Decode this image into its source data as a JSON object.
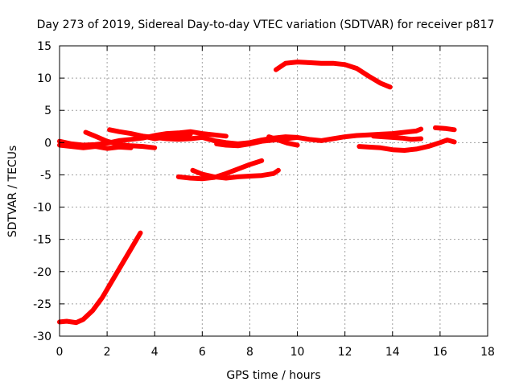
{
  "chart_data": {
    "type": "scatter",
    "title": "Day 273 of 2019, Sidereal Day-to-day VTEC variation (SDTVAR) for receiver p817",
    "xlabel": "GPS time / hours",
    "ylabel": "SDTVAR / TECUs",
    "xlim": [
      0,
      18
    ],
    "ylim": [
      -30,
      15
    ],
    "xticks": [
      0,
      2,
      4,
      6,
      8,
      10,
      12,
      14,
      16,
      18
    ],
    "yticks": [
      -30,
      -25,
      -20,
      -15,
      -10,
      -5,
      0,
      5,
      10,
      15
    ],
    "grid": true,
    "color": "#ff0000",
    "series": [
      {
        "name": "s1",
        "x": [
          0.0,
          0.3,
          0.7,
          1.0,
          1.4,
          1.8,
          2.2,
          2.6,
          3.0,
          3.4
        ],
        "y": [
          -27.8,
          -27.7,
          -27.9,
          -27.4,
          -26.0,
          -24.0,
          -21.5,
          -19.0,
          -16.5,
          -14.0
        ]
      },
      {
        "name": "s2",
        "x": [
          0.0,
          0.5,
          1.0,
          1.5,
          2.0,
          2.5,
          3.0,
          3.5,
          4.0,
          4.5,
          5.0,
          5.5,
          6.0,
          6.5,
          7.0
        ],
        "y": [
          0.2,
          -0.2,
          -0.4,
          -0.3,
          -0.1,
          0.3,
          0.5,
          0.7,
          1.1,
          1.4,
          1.5,
          1.7,
          1.4,
          1.2,
          1.0
        ]
      },
      {
        "name": "s3",
        "x": [
          0.0,
          0.5,
          1.0,
          1.5,
          2.0,
          2.5,
          3.0
        ],
        "y": [
          -0.4,
          -0.6,
          -0.8,
          -0.6,
          -0.9,
          -0.7,
          -0.8
        ]
      },
      {
        "name": "s4",
        "x": [
          1.1,
          1.5,
          2.0,
          2.5,
          3.0,
          3.5,
          4.0
        ],
        "y": [
          1.6,
          1.0,
          0.2,
          -0.3,
          -0.5,
          -0.6,
          -0.8
        ]
      },
      {
        "name": "s5",
        "x": [
          2.1,
          2.5,
          3.0,
          3.5,
          4.0,
          4.5,
          5.0,
          5.5
        ],
        "y": [
          2.0,
          1.7,
          1.4,
          1.0,
          0.6,
          0.9,
          1.1,
          1.3
        ]
      },
      {
        "name": "s6",
        "x": [
          3.5,
          4.0,
          4.5,
          5.0,
          5.5,
          6.0,
          6.5,
          7.0,
          7.5,
          8.0,
          8.5,
          9.0,
          9.5,
          10.0,
          10.5,
          11.0,
          11.5,
          12.0,
          12.5,
          13.0,
          13.5,
          14.0,
          14.5,
          15.0,
          15.2
        ],
        "y": [
          1.0,
          0.8,
          0.6,
          0.5,
          0.6,
          0.8,
          0.3,
          0.0,
          -0.2,
          0.0,
          0.4,
          0.7,
          0.9,
          0.8,
          0.5,
          0.3,
          0.6,
          0.9,
          1.1,
          1.2,
          1.3,
          1.4,
          1.6,
          1.8,
          2.1
        ]
      },
      {
        "name": "s7",
        "x": [
          6.6,
          7.0,
          7.5,
          8.0,
          8.5,
          9.0,
          9.5,
          10.0
        ],
        "y": [
          -0.2,
          -0.4,
          -0.5,
          -0.2,
          0.2,
          0.4,
          0.6,
          0.8
        ]
      },
      {
        "name": "s8",
        "x": [
          8.8,
          9.2,
          9.6,
          10.0
        ],
        "y": [
          0.9,
          0.4,
          -0.1,
          -0.4
        ]
      },
      {
        "name": "s9",
        "x": [
          12.6,
          13.0,
          13.5,
          14.0,
          14.5,
          15.0,
          15.5,
          16.0,
          16.3,
          16.6
        ],
        "y": [
          -0.6,
          -0.7,
          -0.8,
          -1.1,
          -1.2,
          -1.0,
          -0.6,
          0.0,
          0.4,
          0.1
        ]
      },
      {
        "name": "s10",
        "x": [
          13.2,
          13.6,
          14.0,
          14.4,
          14.8,
          15.2
        ],
        "y": [
          1.0,
          0.9,
          0.8,
          0.7,
          0.5,
          0.6
        ]
      },
      {
        "name": "s11",
        "x": [
          15.8,
          16.2,
          16.6
        ],
        "y": [
          2.3,
          2.2,
          2.0
        ]
      },
      {
        "name": "s12",
        "x": [
          5.0,
          5.5,
          6.0,
          6.5,
          7.0,
          7.5,
          8.0,
          8.5
        ],
        "y": [
          -5.3,
          -5.5,
          -5.6,
          -5.4,
          -4.8,
          -4.1,
          -3.4,
          -2.8
        ]
      },
      {
        "name": "s13",
        "x": [
          5.6,
          6.0,
          6.5,
          7.0,
          7.5,
          8.0,
          8.5,
          9.0,
          9.2
        ],
        "y": [
          -4.3,
          -4.9,
          -5.3,
          -5.5,
          -5.3,
          -5.2,
          -5.1,
          -4.8,
          -4.3
        ]
      },
      {
        "name": "s14",
        "x": [
          9.1,
          9.5,
          10.0,
          10.5,
          11.0,
          11.5,
          12.0,
          12.5,
          13.0,
          13.5,
          13.9
        ],
        "y": [
          11.3,
          12.3,
          12.5,
          12.4,
          12.3,
          12.3,
          12.1,
          11.5,
          10.3,
          9.2,
          8.6
        ]
      }
    ]
  }
}
